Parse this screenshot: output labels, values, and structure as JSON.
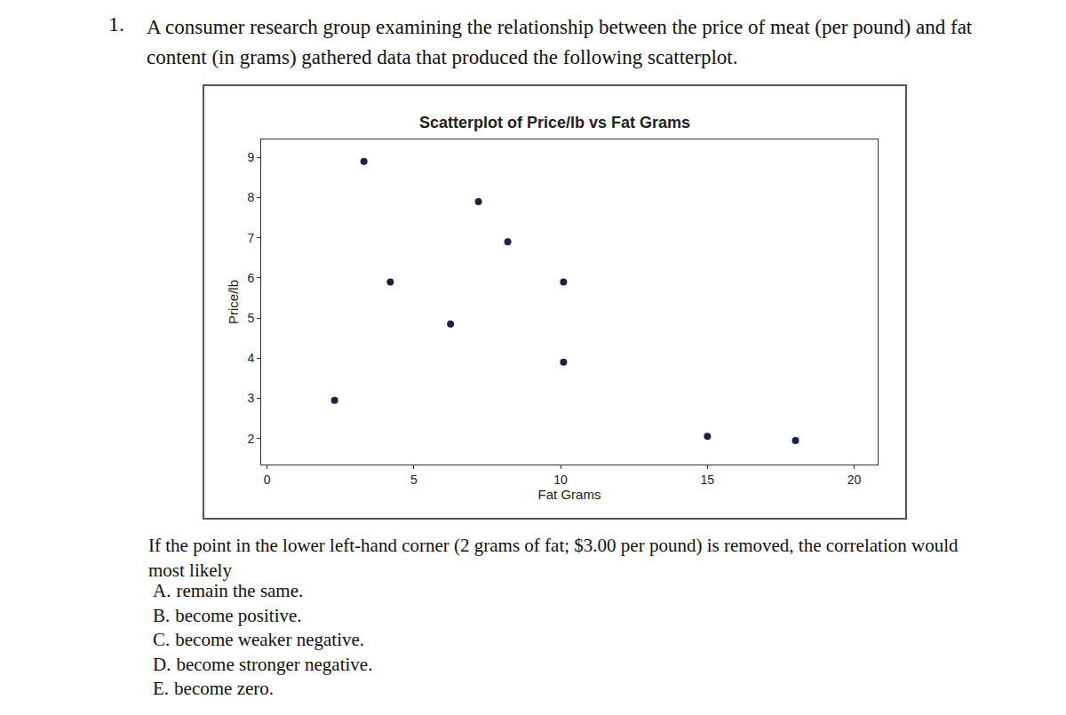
{
  "problem": {
    "number": "1.",
    "text": "A consumer research group examining the relationship between the price of meat (per pound) and fat content (in grams) gathered data that produced the following scatterplot.",
    "question": "If the point in the lower left-hand corner (2 grams of fat; $3.00 per pound) is removed, the correlation would most likely",
    "choices": [
      {
        "letter": "A.",
        "text": "remain the same."
      },
      {
        "letter": "B.",
        "text": "become positive."
      },
      {
        "letter": "C.",
        "text": "become weaker negative."
      },
      {
        "letter": "D.",
        "text": "become stronger negative."
      },
      {
        "letter": "E.",
        "text": "become zero."
      }
    ]
  },
  "chart_data": {
    "type": "scatter",
    "title": "Scatterplot of Price/lb vs Fat Grams",
    "x_label": "Fat Grams",
    "y_label": "Price/lb",
    "x": [
      3.3,
      7.2,
      8.2,
      4.2,
      10.1,
      6.25,
      10.1,
      2.3,
      15.0,
      18.0
    ],
    "values": [
      8.9,
      7.9,
      6.9,
      5.9,
      5.9,
      4.85,
      3.9,
      2.95,
      2.05,
      1.95
    ],
    "xlim": [
      -0.2,
      20.8
    ],
    "ylim": [
      1.35,
      9.45
    ],
    "xticks": [
      0,
      5,
      10,
      15,
      20
    ],
    "yticks": [
      2,
      3,
      4,
      5,
      6,
      7,
      8,
      9
    ],
    "grid": false,
    "color": "#1c2340",
    "marker": "circle"
  }
}
